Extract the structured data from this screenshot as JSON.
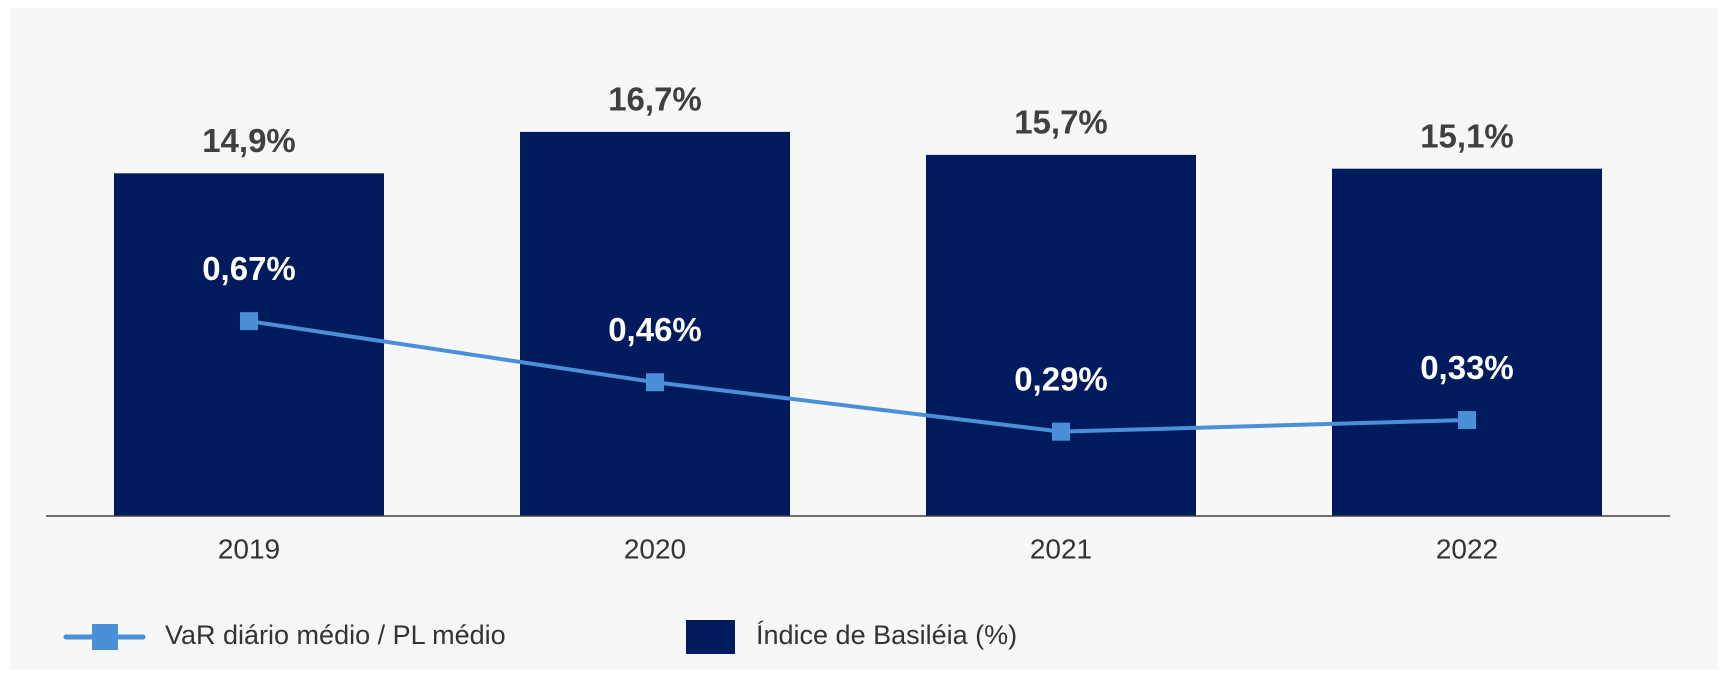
{
  "chart_data": {
    "type": "bar",
    "categories": [
      "2019",
      "2020",
      "2021",
      "2022"
    ],
    "series": [
      {
        "name": "Índice de Basiléia (%)",
        "type": "bar",
        "color": "#001a5e",
        "values": [
          14.9,
          16.7,
          15.7,
          15.1
        ],
        "value_labels": [
          "14,9%",
          "16,7%",
          "15,7%",
          "15,1%"
        ]
      },
      {
        "name": "VaR diário médio / PL médio",
        "type": "line",
        "axis": "y2",
        "color": "#4a90d9",
        "values": [
          0.67,
          0.46,
          0.29,
          0.33
        ],
        "value_labels": [
          "0,67%",
          "0,46%",
          "0,29%",
          "0,33%"
        ]
      }
    ],
    "ylim": [
      0,
      22
    ],
    "y2lim": [
      0,
      1.74
    ],
    "grid": false
  }
}
